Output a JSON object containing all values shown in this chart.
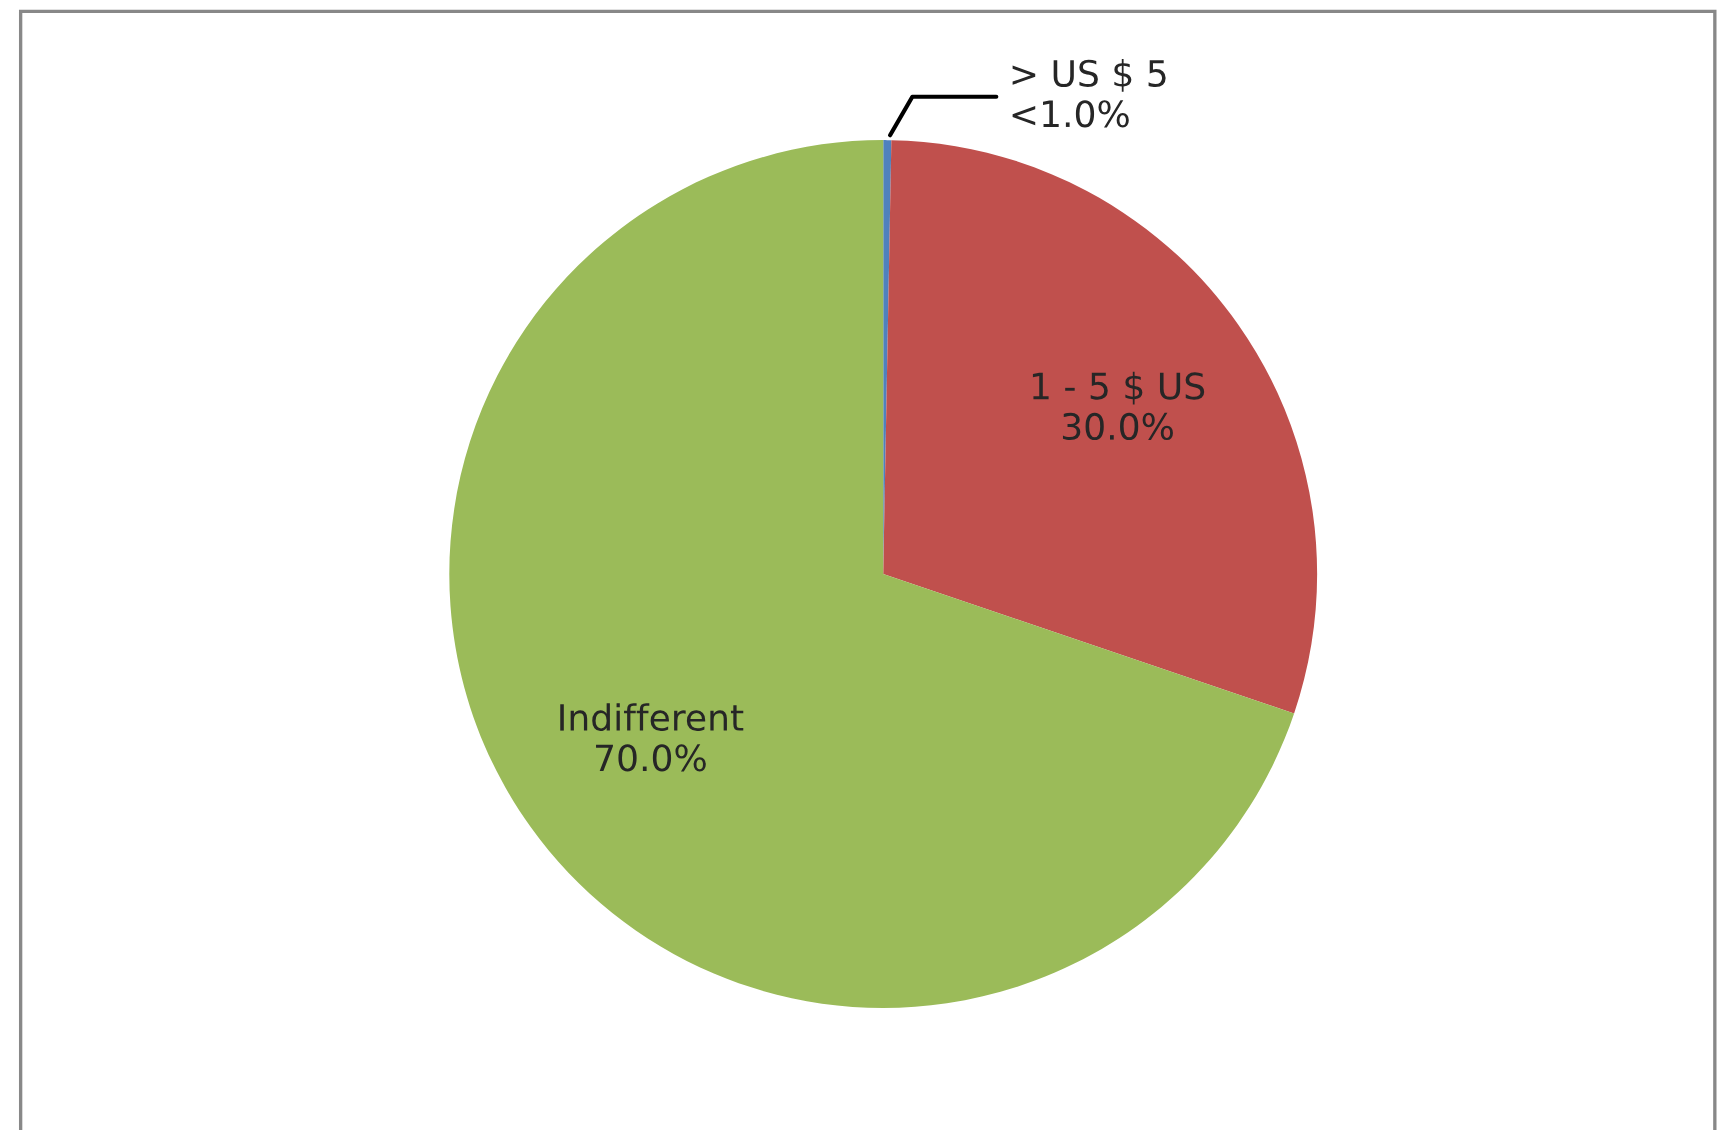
{
  "chart_data": {
    "type": "pie",
    "categories": [
      "> US $ 5",
      "1 - 5 $ US",
      "Indifferent"
    ],
    "values": [
      0.3,
      30.0,
      70.0
    ],
    "value_labels": [
      "<1.0%",
      "30.0%",
      "70.0%"
    ],
    "colors": [
      "#4f81bd",
      "#c0504d",
      "#9bbb59"
    ],
    "legend": false
  }
}
